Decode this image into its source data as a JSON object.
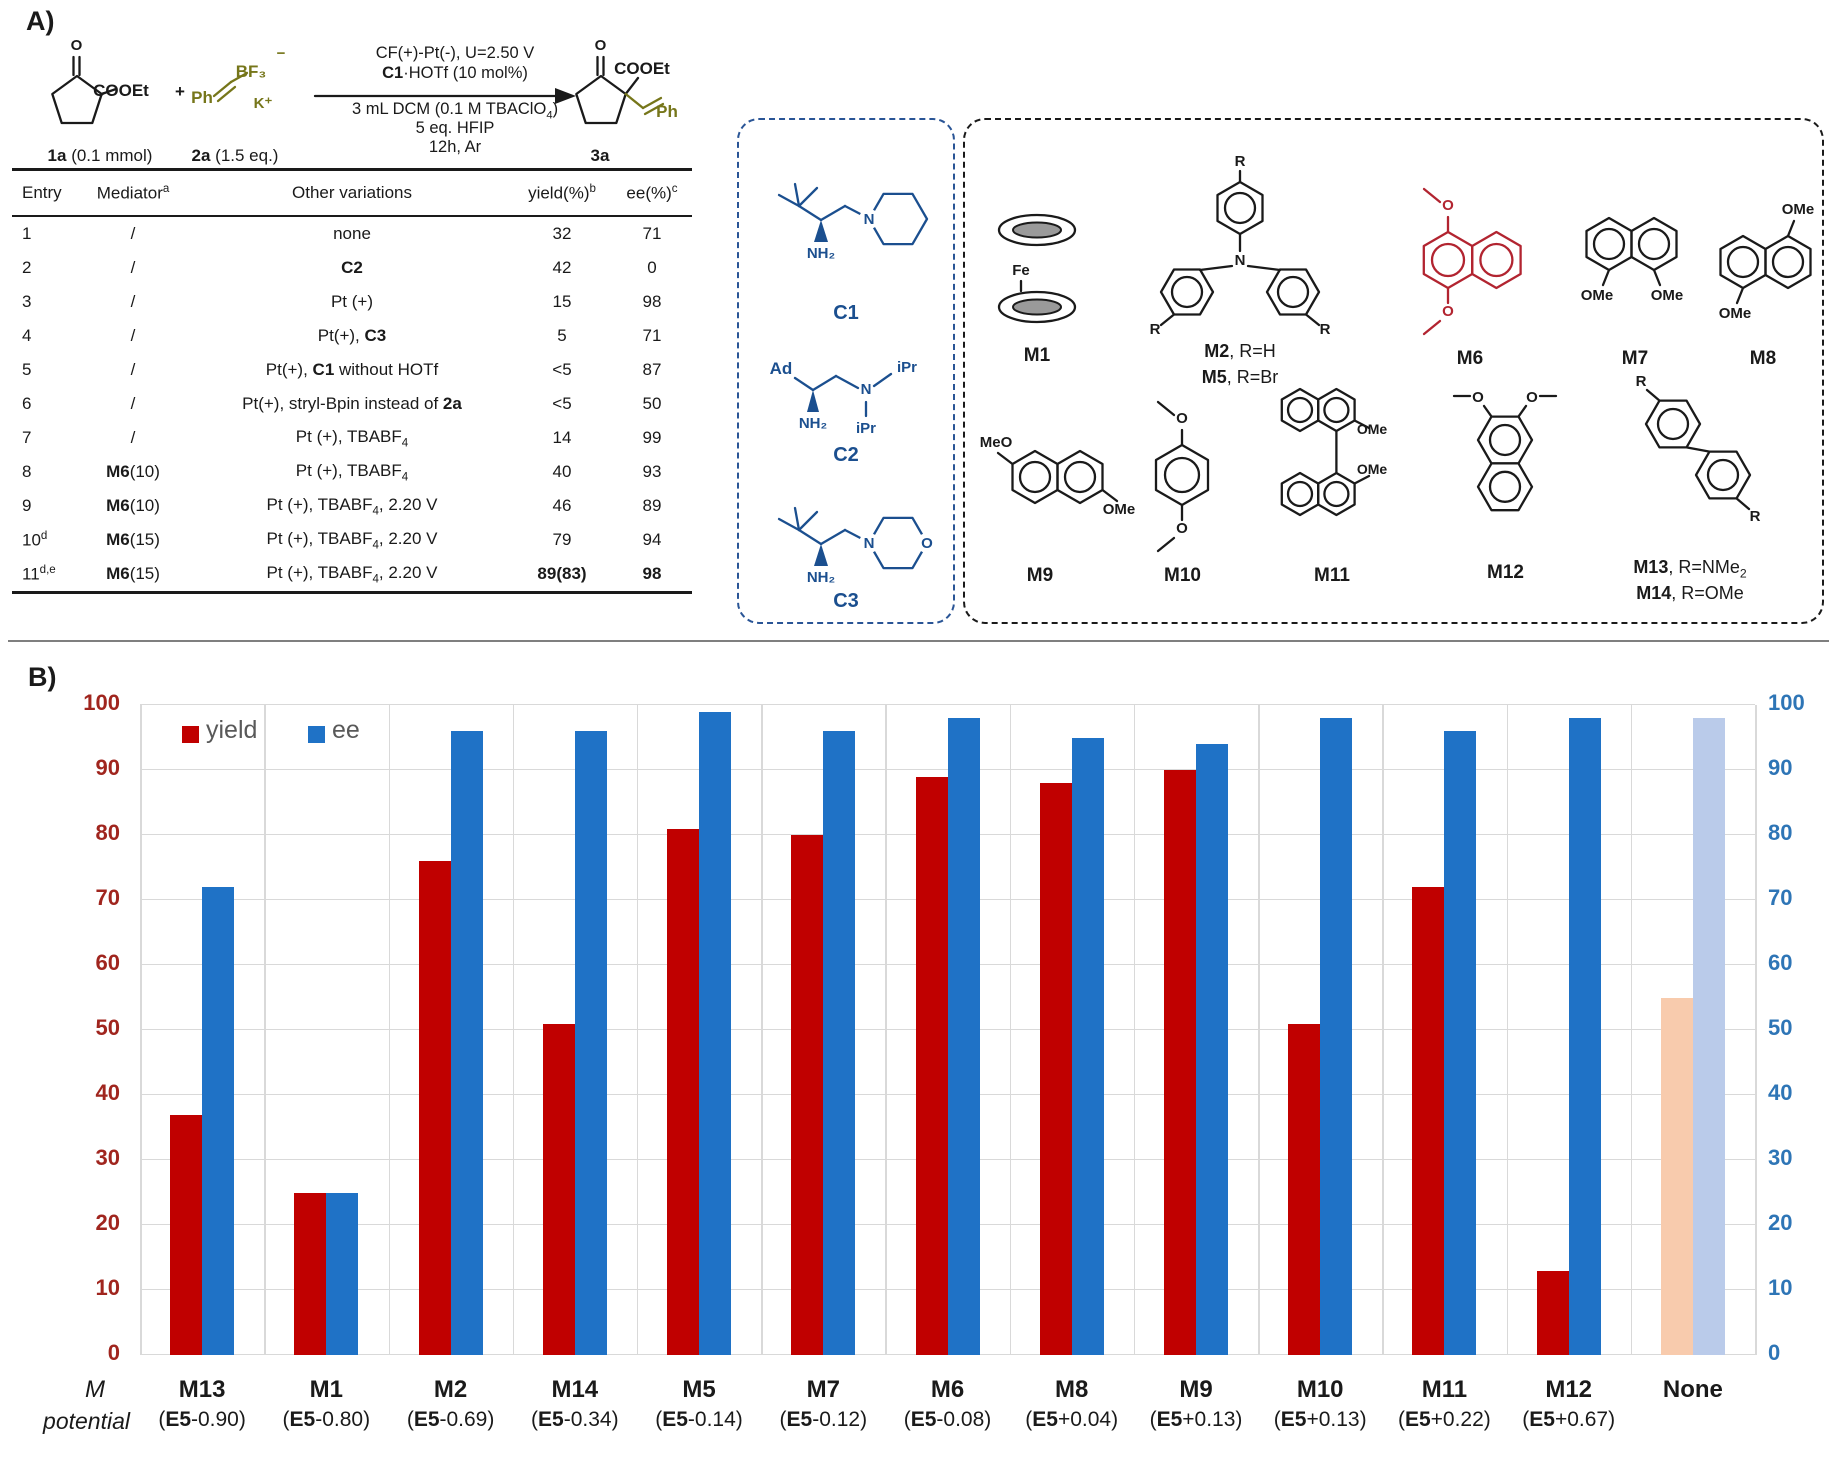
{
  "colors": {
    "structure_blue": "#1b4f8f",
    "mediator_red": "#b22430",
    "olive": "#76761a"
  },
  "panel_a": {
    "label": "A)",
    "scheme": {
      "conditions_above": [
        "CF(+)-Pt(-), U=2.50 V",
        "**C1**·HOTf (10 mol%)"
      ],
      "conditions_below": [
        "3 mL DCM (0.1 M TBAClO_{4})",
        "5 eq. HFIP",
        "12h, Ar"
      ],
      "reactant1": {
        "o": "O",
        "group": "COOEt",
        "plus": "+",
        "caption": "**1a** (0.1 mmol)"
      },
      "reactant2": {
        "ph": "Ph",
        "bf3": "BF₃",
        "minus": "−",
        "k": "K⁺",
        "caption": "**2a** (1.5 eq.)"
      },
      "product": {
        "o": "O",
        "group": "COOEt",
        "ph": "Ph",
        "caption": "**3a**"
      }
    },
    "table": {
      "headers": [
        "Entry",
        "Mediator^{a}",
        "Other variations",
        "yield(%)^{b}",
        "ee(%)^{c}"
      ],
      "rows": [
        [
          "1",
          "/",
          "none",
          "32",
          "71"
        ],
        [
          "2",
          "/",
          "**C2**",
          "42",
          "0"
        ],
        [
          "3",
          "/",
          "Pt (+)",
          "15",
          "98"
        ],
        [
          "4",
          "/",
          "Pt(+), **C3**",
          "5",
          "71"
        ],
        [
          "5",
          "/",
          "Pt(+), **C1** without HOTf",
          "<5",
          "87"
        ],
        [
          "6",
          "/",
          "Pt(+), stryl-Bpin instead of **2a**",
          "<5",
          "50"
        ],
        [
          "7",
          "/",
          "Pt (+), TBABF_{4}",
          "14",
          "99"
        ],
        [
          "8",
          "**M6**(10)",
          "Pt (+), TBABF_{4}",
          "40",
          "93"
        ],
        [
          "9",
          "**M6**(10)",
          "Pt (+), TBABF_{4}, 2.20 V",
          "46",
          "89"
        ],
        [
          "10^{d}",
          "**M6**(15)",
          "Pt (+), TBABF_{4}, 2.20 V",
          "79",
          "94"
        ],
        [
          "11^{d,e}",
          "**M6**(15)",
          "Pt (+), TBABF_{4}, 2.20 V",
          "**89(83)**",
          "**98**"
        ]
      ]
    },
    "catalysts": {
      "c1": {
        "nh2": "NH₂",
        "n": "N",
        "label": "C1"
      },
      "c2": {
        "ad": "Ad",
        "nh2": "NH₂",
        "n": "N",
        "ipr1": "iPr",
        "ipr2": "iPr",
        "label": "C2"
      },
      "c3": {
        "nh2": "NH₂",
        "n": "N",
        "o": "O",
        "label": "C3"
      }
    },
    "mediators": {
      "m1": {
        "fe": "Fe",
        "label": "M1"
      },
      "m2m5": {
        "n": "N",
        "r1": "R",
        "r2": "R",
        "r3": "R",
        "label1": "**M2**, R=H",
        "label2": "**M5**, R=Br"
      },
      "m6": {
        "o1": "O",
        "o2": "O",
        "label": "M6"
      },
      "m7": {
        "ome1": "OMe",
        "ome2": "OMe",
        "label": "M7"
      },
      "m8": {
        "ome1": "OMe",
        "ome2": "OMe",
        "label": "M8"
      },
      "m9": {
        "meo": "MeO",
        "ome": "OMe",
        "label": "M9"
      },
      "m10": {
        "o1": "O",
        "o2": "O",
        "label": "M10"
      },
      "m11": {
        "ome1": "OMe",
        "ome2": "OMe",
        "label": "M11"
      },
      "m12": {
        "o1": "O",
        "o2": "O",
        "label": "M12"
      },
      "m13m14": {
        "r1": "R",
        "r2": "R",
        "label1": "**M13**, R=NMe_{2}",
        "label2": "**M14**, R=OMe"
      }
    }
  },
  "panel_b": {
    "label": "B)",
    "legend": {
      "yield": "yield",
      "ee": "ee"
    },
    "row_labels": {
      "m": "M",
      "potential": "potential"
    },
    "chart_data": {
      "type": "bar",
      "categories": [
        "M13",
        "M1",
        "M2",
        "M14",
        "M5",
        "M7",
        "M6",
        "M8",
        "M9",
        "M10",
        "M11",
        "M12",
        "None"
      ],
      "potential_labels": [
        "(**E5**-0.90)",
        "(**E5**-0.80)",
        "(**E5**-0.69)",
        "(**E5**-0.34)",
        "(**E5**-0.14)",
        "(**E5**-0.12)",
        "(**E5**-0.08)",
        "(**E5**+0.04)",
        "(**E5**+0.13)",
        "(**E5**+0.13)",
        "(**E5**+0.22)",
        "(**E5**+0.67)",
        ""
      ],
      "series": [
        {
          "name": "yield",
          "values": [
            37,
            25,
            76,
            51,
            81,
            80,
            89,
            88,
            90,
            51,
            72,
            13,
            55
          ],
          "color": "#c00000",
          "color_none": "#f8cbad"
        },
        {
          "name": "ee",
          "values": [
            72,
            25,
            96,
            96,
            99,
            96,
            98,
            95,
            94,
            98,
            96,
            98,
            98
          ],
          "color": "#1f72c6",
          "color_none": "#bacbea"
        }
      ],
      "muted_category": "None",
      "ylim": [
        0,
        100
      ],
      "ytick_step": 10,
      "left_axis_color": "#a0251e",
      "right_axis_color": "#2e75b6",
      "grid": true,
      "legend_position": "top-left"
    }
  }
}
